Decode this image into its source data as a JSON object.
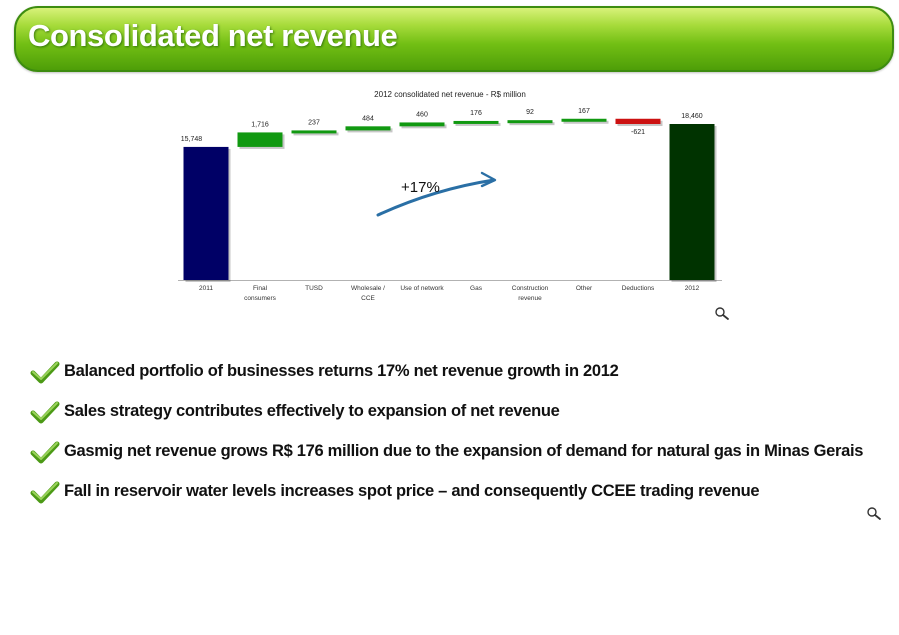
{
  "header": {
    "title": "Consolidated net revenue"
  },
  "chart_data": {
    "type": "waterfall",
    "title": "2012 consolidated net revenue - R$ million",
    "categories": [
      "2011",
      "Final\nconsumers",
      "TUSD",
      "Wholesale /\nCCE",
      "Use of network",
      "Gas",
      "Construction\nrevenue",
      "Other",
      "Deductions",
      "2012"
    ],
    "values": [
      15748,
      1716,
      237,
      484,
      460,
      176,
      92,
      167,
      -621,
      18460
    ],
    "value_labels": [
      "15,748",
      "1,716",
      "237",
      "484",
      "460",
      "176",
      "92",
      "167",
      "-621",
      "18,460"
    ],
    "bar_kind": [
      "total",
      "delta",
      "delta",
      "delta",
      "delta",
      "delta",
      "delta",
      "delta",
      "delta",
      "total"
    ],
    "annotation": "+17%",
    "colors": {
      "start": "#000066",
      "increase": "#119911",
      "decrease": "#cc1111",
      "end": "#003300"
    }
  },
  "bullets": [
    "Balanced portfolio of businesses returns 17% net revenue growth in 2012",
    "Sales strategy contributes effectively to expansion of net revenue",
    "Gasmig net revenue grows R$ 176 million due to the expansion of demand for natural gas in Minas Gerais",
    "Fall in reservoir water levels increases spot price – and consequently CCEE trading revenue"
  ],
  "icons": {
    "zoom": "magnifier-icon",
    "bullet": "checkmark-icon"
  }
}
